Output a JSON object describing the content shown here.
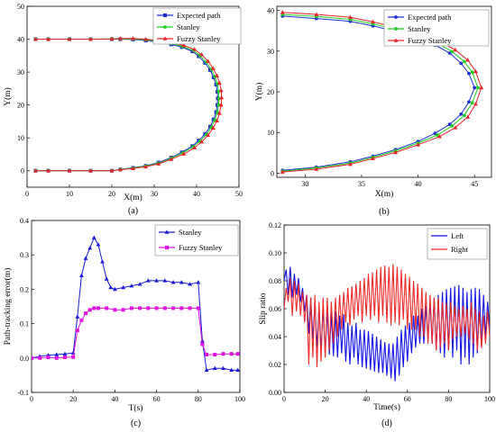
{
  "colors": {
    "expected": "#1f2fd6",
    "stanley": "#22cc22",
    "fuzzy": "#e8202a",
    "err_stanley": "#1a1ad8",
    "err_fuzzy": "#e011e0",
    "slip_left": "#1414e6",
    "slip_right": "#ee2a2a"
  },
  "chart_data": [
    {
      "panel": "(a)",
      "type": "line",
      "xlabel": "X(m)",
      "ylabel": "Y(m)",
      "xlim": [
        0,
        50
      ],
      "ylim": [
        -5,
        50
      ],
      "xticks": [
        "0",
        "10",
        "20",
        "30",
        "40",
        "50"
      ],
      "yticks": [
        "0",
        "10",
        "20",
        "30",
        "40",
        "50"
      ],
      "legend": "top-right",
      "series": [
        {
          "name": "Expected path",
          "marker": "square",
          "color_key": "expected",
          "x": [
            2,
            5,
            10,
            15,
            20,
            22,
            25,
            28,
            31,
            34,
            36.5,
            39,
            40.5,
            42,
            43.2,
            44,
            44.6,
            44.9,
            45,
            44.9,
            44.6,
            44,
            43.2,
            42,
            40.5,
            39,
            36.5,
            34,
            31,
            28,
            25,
            22,
            20,
            15,
            10,
            5,
            2
          ],
          "y": [
            0,
            0,
            0,
            0,
            0,
            0.4,
            0.9,
            1.5,
            2.5,
            4,
            5.6,
            7.5,
            9.2,
            11.2,
            13.4,
            15.6,
            17.8,
            20,
            22,
            24,
            26.2,
            28.4,
            30.6,
            32.8,
            34.8,
            36.3,
            37.6,
            38.4,
            39.1,
            39.6,
            39.9,
            40,
            40,
            40,
            40,
            40,
            40
          ]
        },
        {
          "name": "Stanley",
          "marker": "circle",
          "color_key": "stanley",
          "x": [
            2,
            5,
            10,
            15,
            20,
            22,
            25,
            28,
            31,
            34,
            36.7,
            39.2,
            40.8,
            42.3,
            43.5,
            44.3,
            44.9,
            45.2,
            45.3,
            45.2,
            44.9,
            44.3,
            43.5,
            42.3,
            40.8,
            39.2,
            36.7,
            34,
            31,
            28,
            25,
            22,
            20,
            15,
            10,
            5,
            2
          ],
          "y": [
            0,
            0,
            0,
            0,
            0,
            0.35,
            0.8,
            1.4,
            2.3,
            3.8,
            5.4,
            7.3,
            9,
            11,
            13.2,
            15.4,
            17.7,
            20,
            22,
            24.1,
            26.4,
            28.6,
            30.8,
            33,
            35,
            36.6,
            37.8,
            38.7,
            39.3,
            39.8,
            40,
            40.1,
            40.1,
            40,
            40,
            40,
            40
          ]
        },
        {
          "name": "Fuzzy Stanley",
          "marker": "triangle",
          "color_key": "fuzzy",
          "x": [
            2,
            5,
            10,
            15,
            20,
            22,
            25,
            28,
            31,
            34,
            37,
            39.5,
            41.2,
            42.7,
            43.9,
            44.8,
            45.4,
            45.8,
            45.9,
            45.8,
            45.4,
            44.8,
            43.9,
            42.7,
            41.2,
            39.5,
            37,
            34,
            31,
            28,
            25,
            22,
            20,
            15,
            10,
            5,
            2
          ],
          "y": [
            0,
            0,
            0,
            0,
            0,
            0.3,
            0.7,
            1.2,
            2.1,
            3.5,
            5.1,
            7,
            8.8,
            10.8,
            13,
            15.2,
            17.5,
            20,
            22.2,
            24.4,
            26.7,
            28.9,
            31.1,
            33.3,
            35.3,
            36.9,
            38.1,
            39,
            39.6,
            40,
            40.2,
            40.2,
            40.1,
            40,
            40,
            40,
            40
          ]
        }
      ]
    },
    {
      "panel": "(b)",
      "type": "line",
      "xlabel": "X(m)",
      "ylabel": "Y(m)",
      "xlim": [
        27.5,
        46.5
      ],
      "ylim": [
        -1,
        41
      ],
      "xticks": [
        "30",
        "35",
        "40",
        "45"
      ],
      "yticks": [
        "0",
        "10",
        "20",
        "30",
        "40"
      ],
      "legend": "top-right",
      "series": [
        {
          "name": "Expected path",
          "marker": "circle",
          "color_key": "expected",
          "x": [
            28,
            31,
            34,
            36,
            38,
            40,
            41.5,
            42.8,
            43.8,
            44.5,
            45,
            44.5,
            43.8,
            42.8,
            41.5,
            40,
            38,
            36,
            34,
            31,
            28
          ],
          "y": [
            0.7,
            1.5,
            2.8,
            4.2,
            5.8,
            7.8,
            9.8,
            12,
            14.5,
            17.5,
            21,
            24.5,
            27,
            29.5,
            31.5,
            33.2,
            34.8,
            36.2,
            37.3,
            38,
            38.6
          ]
        },
        {
          "name": "Stanley",
          "marker": "circle",
          "color_key": "stanley",
          "x": [
            28,
            31,
            34,
            36,
            38,
            40,
            41.7,
            43,
            44.1,
            44.8,
            45.3,
            44.8,
            44.1,
            43,
            41.7,
            40,
            38,
            36,
            34,
            31,
            28
          ],
          "y": [
            0.5,
            1.3,
            2.5,
            3.9,
            5.5,
            7.4,
            9.4,
            11.6,
            14.2,
            17.3,
            21,
            24.8,
            27.4,
            29.9,
            31.9,
            33.7,
            35.3,
            36.7,
            37.8,
            38.5,
            39
          ]
        },
        {
          "name": "Fuzzy Stanley",
          "marker": "triangle",
          "color_key": "fuzzy",
          "x": [
            28,
            31,
            34,
            36,
            38,
            40,
            41.9,
            43.3,
            44.4,
            45.1,
            45.6,
            45.1,
            44.4,
            43.3,
            41.9,
            40,
            38,
            36,
            34,
            31,
            28
          ],
          "y": [
            0.3,
            1,
            2.2,
            3.6,
            5.1,
            7,
            9,
            11.2,
            13.8,
            17,
            21,
            25,
            27.8,
            30.3,
            32.4,
            34.2,
            35.8,
            37.2,
            38.3,
            39,
            39.5
          ]
        }
      ]
    },
    {
      "panel": "(c)",
      "type": "line",
      "xlabel": "T(s)",
      "ylabel": "Path-tracking error(m)",
      "xlim": [
        0,
        100
      ],
      "ylim": [
        -0.1,
        0.4
      ],
      "xticks": [
        "0",
        "20",
        "40",
        "60",
        "80",
        "100"
      ],
      "yticks": [
        "-0.1",
        "0.0",
        "0.1",
        "0.2",
        "0.3",
        "0.4"
      ],
      "legend": "top-right",
      "series": [
        {
          "name": "Stanley",
          "marker": "triangle",
          "color_key": "err_stanley",
          "x": [
            0,
            4,
            8,
            12,
            16,
            20,
            22,
            24,
            26,
            28,
            30,
            32,
            34,
            36,
            38,
            40,
            44,
            48,
            52,
            56,
            60,
            64,
            68,
            72,
            76,
            80,
            82,
            84,
            88,
            92,
            96,
            99
          ],
          "y": [
            0,
            0.005,
            0.008,
            0.01,
            0.012,
            0.015,
            0.12,
            0.24,
            0.29,
            0.32,
            0.35,
            0.33,
            0.28,
            0.23,
            0.205,
            0.2,
            0.205,
            0.21,
            0.215,
            0.225,
            0.225,
            0.225,
            0.22,
            0.22,
            0.215,
            0.22,
            0.05,
            -0.035,
            -0.03,
            -0.03,
            -0.035,
            -0.035
          ]
        },
        {
          "name": "Fuzzy Stanley",
          "marker": "square",
          "color_key": "err_fuzzy",
          "x": [
            0,
            4,
            8,
            12,
            16,
            20,
            22,
            24,
            26,
            28,
            30,
            32,
            36,
            40,
            44,
            48,
            52,
            56,
            60,
            64,
            68,
            72,
            76,
            80,
            82,
            84,
            88,
            92,
            96,
            99
          ],
          "y": [
            0,
            0,
            0.002,
            0,
            0.002,
            0.003,
            0.08,
            0.11,
            0.13,
            0.14,
            0.145,
            0.145,
            0.145,
            0.14,
            0.14,
            0.145,
            0.145,
            0.145,
            0.145,
            0.145,
            0.145,
            0.145,
            0.145,
            0.145,
            0.04,
            0.01,
            0.01,
            0.012,
            0.012,
            0.012
          ]
        }
      ]
    },
    {
      "panel": "(d)",
      "type": "line",
      "xlabel": "Time(s)",
      "ylabel": "Slip ratio",
      "xlim": [
        0,
        100
      ],
      "ylim": [
        0,
        0.12
      ],
      "xticks": [
        "0",
        "20",
        "40",
        "60",
        "80",
        "100"
      ],
      "yticks": [
        "0.00",
        "0.02",
        "0.04",
        "0.06",
        "0.08",
        "0.10",
        "0.12"
      ],
      "legend": "top-right",
      "series": [
        {
          "name": "Left",
          "color_key": "slip_left",
          "x": [
            0,
            1,
            2,
            3,
            4,
            5,
            6,
            7,
            8,
            9,
            10,
            11,
            12,
            13,
            14,
            15,
            16,
            17,
            18,
            19,
            20,
            21,
            22,
            23,
            24,
            25,
            26,
            27,
            28,
            29,
            30,
            31,
            32,
            33,
            34,
            35,
            36,
            37,
            38,
            39,
            40,
            41,
            42,
            43,
            44,
            45,
            46,
            47,
            48,
            49,
            50,
            51,
            52,
            53,
            54,
            55,
            56,
            57,
            58,
            59,
            60,
            61,
            62,
            63,
            64,
            65,
            66,
            67,
            68,
            69,
            70,
            71,
            72,
            73,
            74,
            75,
            76,
            77,
            78,
            79,
            80,
            81,
            82,
            83,
            84,
            85,
            86,
            87,
            88,
            89,
            90,
            91,
            92,
            93,
            94,
            95,
            96,
            97,
            98,
            99,
            100
          ],
          "y": [
            0.08,
            0.088,
            0.07,
            0.09,
            0.068,
            0.085,
            0.07,
            0.082,
            0.065,
            0.075,
            0.058,
            0.07,
            0.042,
            0.068,
            0.038,
            0.065,
            0.032,
            0.062,
            0.03,
            0.06,
            0.028,
            0.058,
            0.027,
            0.056,
            0.026,
            0.058,
            0.025,
            0.055,
            0.028,
            0.056,
            0.022,
            0.05,
            0.02,
            0.048,
            0.025,
            0.05,
            0.02,
            0.045,
            0.018,
            0.045,
            0.017,
            0.044,
            0.016,
            0.042,
            0.015,
            0.04,
            0.014,
            0.038,
            0.014,
            0.036,
            0.012,
            0.035,
            0.01,
            0.035,
            0.008,
            0.04,
            0.012,
            0.045,
            0.018,
            0.048,
            0.022,
            0.05,
            0.028,
            0.055,
            0.032,
            0.055,
            0.035,
            0.06,
            0.035,
            0.062,
            0.038,
            0.065,
            0.035,
            0.068,
            0.03,
            0.07,
            0.028,
            0.072,
            0.025,
            0.074,
            0.03,
            0.075,
            0.025,
            0.076,
            0.03,
            0.077,
            0.02,
            0.075,
            0.025,
            0.072,
            0.02,
            0.074,
            0.025,
            0.075,
            0.028,
            0.074,
            0.032,
            0.07,
            0.04,
            0.065,
            0.045
          ]
        },
        {
          "name": "Right",
          "color_key": "slip_right",
          "x": [
            0,
            1,
            2,
            3,
            4,
            5,
            6,
            7,
            8,
            9,
            10,
            11,
            12,
            13,
            14,
            15,
            16,
            17,
            18,
            19,
            20,
            21,
            22,
            23,
            24,
            25,
            26,
            27,
            28,
            29,
            30,
            31,
            32,
            33,
            34,
            35,
            36,
            37,
            38,
            39,
            40,
            41,
            42,
            43,
            44,
            45,
            46,
            47,
            48,
            49,
            50,
            51,
            52,
            53,
            54,
            55,
            56,
            57,
            58,
            59,
            60,
            61,
            62,
            63,
            64,
            65,
            66,
            67,
            68,
            69,
            70,
            71,
            72,
            73,
            74,
            75,
            76,
            77,
            78,
            79,
            80,
            81,
            82,
            83,
            84,
            85,
            86,
            87,
            88,
            89,
            90,
            91,
            92,
            93,
            94,
            95,
            96,
            97,
            98,
            99,
            100
          ],
          "y": [
            0.06,
            0.075,
            0.065,
            0.082,
            0.055,
            0.08,
            0.058,
            0.078,
            0.055,
            0.072,
            0.05,
            0.07,
            0.02,
            0.068,
            0.025,
            0.07,
            0.018,
            0.065,
            0.022,
            0.068,
            0.025,
            0.068,
            0.03,
            0.065,
            0.035,
            0.068,
            0.04,
            0.07,
            0.045,
            0.072,
            0.05,
            0.075,
            0.048,
            0.076,
            0.052,
            0.078,
            0.055,
            0.08,
            0.05,
            0.082,
            0.055,
            0.085,
            0.052,
            0.086,
            0.055,
            0.088,
            0.05,
            0.09,
            0.055,
            0.091,
            0.05,
            0.09,
            0.048,
            0.092,
            0.05,
            0.09,
            0.048,
            0.088,
            0.052,
            0.085,
            0.045,
            0.083,
            0.045,
            0.08,
            0.045,
            0.078,
            0.04,
            0.075,
            0.04,
            0.072,
            0.035,
            0.07,
            0.035,
            0.068,
            0.03,
            0.068,
            0.032,
            0.065,
            0.035,
            0.064,
            0.03,
            0.065,
            0.038,
            0.062,
            0.04,
            0.06,
            0.04,
            0.062,
            0.042,
            0.06,
            0.038,
            0.065,
            0.035,
            0.06,
            0.03,
            0.058,
            0.032,
            0.055,
            0.035,
            0.058,
            0.04
          ]
        }
      ]
    }
  ]
}
